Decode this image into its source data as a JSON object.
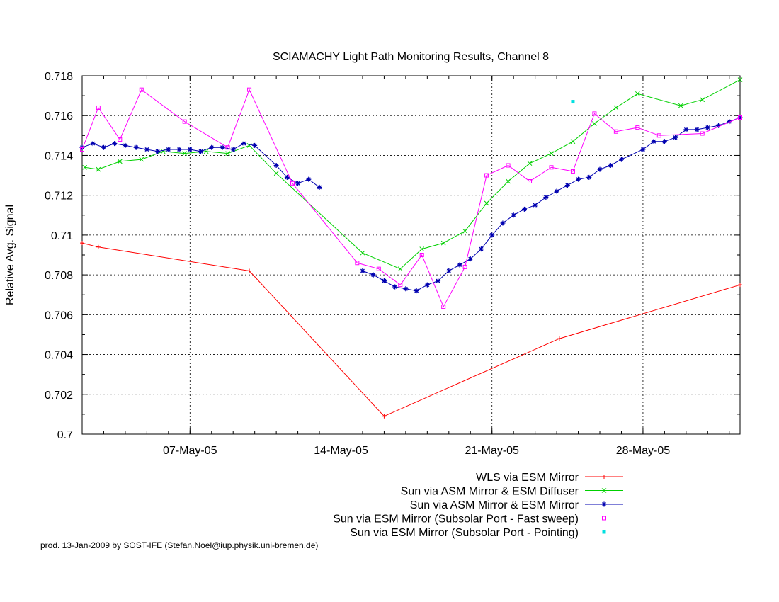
{
  "chart_data": {
    "type": "line",
    "title": "SCIAMACHY Light Path Monitoring Results, Channel 8",
    "xlabel": "",
    "ylabel": "Relative Avg. Signal",
    "x_unit": "date (May 2005)",
    "xlim": [
      "2005-05-02T00:00",
      "2005-06-01T12:00"
    ],
    "ylim": [
      0.7,
      0.718
    ],
    "yticks": [
      0.7,
      0.702,
      0.704,
      0.706,
      0.708,
      0.71,
      0.712,
      0.714,
      0.716,
      0.718
    ],
    "ytick_labels": [
      "0.7",
      "0.702",
      "0.704",
      "0.706",
      "0.708",
      "0.71",
      "0.712",
      "0.714",
      "0.716",
      "0.718"
    ],
    "xticks": [
      "2005-05-07",
      "2005-05-14",
      "2005-05-21",
      "2005-05-28"
    ],
    "xtick_labels": [
      "07-May-05",
      "14-May-05",
      "21-May-05",
      "28-May-05"
    ],
    "grid": true,
    "legend_position": "bottom-right",
    "series": [
      {
        "name": "WLS via ESM Mirror",
        "color": "#ff0000",
        "marker": "plus",
        "connected": true,
        "points": [
          [
            "2005-05-02T00:00",
            0.7096
          ],
          [
            "2005-05-02T18:00",
            0.7094
          ],
          [
            "2005-05-09T18:00",
            0.7082
          ],
          [
            "2005-05-16T00:00",
            0.7009
          ],
          [
            "2005-05-24T03:00",
            0.7048
          ],
          [
            "2005-06-01T12:00",
            0.7075
          ]
        ]
      },
      {
        "name": "Sun via ASM Mirror & ESM Diffuser",
        "color": "#00d000",
        "marker": "cross",
        "connected": true,
        "points": [
          [
            "2005-05-02T03:00",
            0.7134
          ],
          [
            "2005-05-02T18:00",
            0.7133
          ],
          [
            "2005-05-03T18:00",
            0.7137
          ],
          [
            "2005-05-04T18:00",
            0.7138
          ],
          [
            "2005-05-05T18:00",
            0.7142
          ],
          [
            "2005-05-06T18:00",
            0.7141
          ],
          [
            "2005-05-07T18:00",
            0.7142
          ],
          [
            "2005-05-08T18:00",
            0.7141
          ],
          [
            "2005-05-09T18:00",
            0.7145
          ],
          [
            "2005-05-11T00:00",
            0.7131
          ],
          [
            "2005-05-15T00:00",
            0.7091
          ],
          [
            "2005-05-16T18:00",
            0.7083
          ],
          [
            "2005-05-17T18:00",
            0.7093
          ],
          [
            "2005-05-18T18:00",
            0.7096
          ],
          [
            "2005-05-19T18:00",
            0.7102
          ],
          [
            "2005-05-20T18:00",
            0.7116
          ],
          [
            "2005-05-21T18:00",
            0.7127
          ],
          [
            "2005-05-22T18:00",
            0.7136
          ],
          [
            "2005-05-23T18:00",
            0.7141
          ],
          [
            "2005-05-24T18:00",
            0.7147
          ],
          [
            "2005-05-25T18:00",
            0.7156
          ],
          [
            "2005-05-26T18:00",
            0.7164
          ],
          [
            "2005-05-27T18:00",
            0.7171
          ],
          [
            "2005-05-29T18:00",
            0.7165
          ],
          [
            "2005-05-30T18:00",
            0.7168
          ],
          [
            "2005-06-01T12:00",
            0.7178
          ]
        ]
      },
      {
        "name": "Sun via ASM Mirror & ESM Mirror",
        "color": "#0000b0",
        "marker": "star",
        "connected": true,
        "dense": true,
        "points": [
          [
            "2005-05-02T00:00",
            0.7144
          ],
          [
            "2005-05-02T12:00",
            0.7146
          ],
          [
            "2005-05-03T00:00",
            0.7144
          ],
          [
            "2005-05-03T12:00",
            0.7146
          ],
          [
            "2005-05-04T00:00",
            0.7145
          ],
          [
            "2005-05-04T12:00",
            0.7144
          ],
          [
            "2005-05-05T00:00",
            0.7143
          ],
          [
            "2005-05-05T12:00",
            0.7142
          ],
          [
            "2005-05-06T00:00",
            0.7143
          ],
          [
            "2005-05-06T12:00",
            0.7143
          ],
          [
            "2005-05-07T00:00",
            0.7143
          ],
          [
            "2005-05-07T12:00",
            0.7142
          ],
          [
            "2005-05-08T00:00",
            0.7144
          ],
          [
            "2005-05-08T12:00",
            0.7144
          ],
          [
            "2005-05-09T00:00",
            0.7143
          ],
          [
            "2005-05-09T12:00",
            0.7146
          ],
          [
            "2005-05-10T00:00",
            0.7145
          ],
          [
            "2005-05-11T00:00",
            0.7135
          ],
          [
            "2005-05-11T12:00",
            0.7129
          ],
          [
            "2005-05-12T00:00",
            0.7126
          ],
          [
            "2005-05-12T12:00",
            0.7128
          ],
          [
            "2005-05-13T00:00",
            0.7124
          ],
          [
            "2005-05-15T00:00",
            0.7082
          ],
          [
            "2005-05-15T12:00",
            0.708
          ],
          [
            "2005-05-16T00:00",
            0.7077
          ],
          [
            "2005-05-16T12:00",
            0.7074
          ],
          [
            "2005-05-17T00:00",
            0.7073
          ],
          [
            "2005-05-17T12:00",
            0.7072
          ],
          [
            "2005-05-18T00:00",
            0.7075
          ],
          [
            "2005-05-18T12:00",
            0.7077
          ],
          [
            "2005-05-19T00:00",
            0.7082
          ],
          [
            "2005-05-19T12:00",
            0.7085
          ],
          [
            "2005-05-20T00:00",
            0.7088
          ],
          [
            "2005-05-20T12:00",
            0.7093
          ],
          [
            "2005-05-21T00:00",
            0.71
          ],
          [
            "2005-05-21T12:00",
            0.7106
          ],
          [
            "2005-05-22T00:00",
            0.711
          ],
          [
            "2005-05-22T12:00",
            0.7113
          ],
          [
            "2005-05-23T00:00",
            0.7115
          ],
          [
            "2005-05-23T12:00",
            0.7119
          ],
          [
            "2005-05-24T00:00",
            0.7122
          ],
          [
            "2005-05-24T12:00",
            0.7125
          ],
          [
            "2005-05-25T00:00",
            0.7128
          ],
          [
            "2005-05-25T12:00",
            0.7129
          ],
          [
            "2005-05-26T00:00",
            0.7133
          ],
          [
            "2005-05-26T12:00",
            0.7135
          ],
          [
            "2005-05-27T00:00",
            0.7138
          ],
          [
            "2005-05-28T00:00",
            0.7143
          ],
          [
            "2005-05-28T12:00",
            0.7147
          ],
          [
            "2005-05-29T00:00",
            0.7147
          ],
          [
            "2005-05-29T12:00",
            0.7149
          ],
          [
            "2005-05-30T00:00",
            0.7153
          ],
          [
            "2005-05-30T12:00",
            0.7153
          ],
          [
            "2005-05-31T00:00",
            0.7154
          ],
          [
            "2005-05-31T12:00",
            0.7155
          ],
          [
            "2005-06-01T00:00",
            0.7157
          ],
          [
            "2005-06-01T12:00",
            0.7159
          ]
        ]
      },
      {
        "name": "Sun via ESM Mirror (Subsolar Port - Fast sweep)",
        "color": "#ff00ff",
        "marker": "open-square",
        "connected": true,
        "points": [
          [
            "2005-05-02T00:00",
            0.7143
          ],
          [
            "2005-05-02T18:00",
            0.7164
          ],
          [
            "2005-05-03T18:00",
            0.7148
          ],
          [
            "2005-05-04T18:00",
            0.7173
          ],
          [
            "2005-05-06T18:00",
            0.7157
          ],
          [
            "2005-05-08T18:00",
            0.7144
          ],
          [
            "2005-05-09T18:00",
            0.7173
          ],
          [
            "2005-05-11T18:00",
            0.7126
          ],
          [
            "2005-05-14T18:00",
            0.7086
          ],
          [
            "2005-05-15T18:00",
            0.7083
          ],
          [
            "2005-05-16T18:00",
            0.7075
          ],
          [
            "2005-05-17T18:00",
            0.709
          ],
          [
            "2005-05-18T18:00",
            0.7064
          ],
          [
            "2005-05-19T18:00",
            0.7084
          ],
          [
            "2005-05-20T18:00",
            0.713
          ],
          [
            "2005-05-21T18:00",
            0.7135
          ],
          [
            "2005-05-22T18:00",
            0.7127
          ],
          [
            "2005-05-23T18:00",
            0.7134
          ],
          [
            "2005-05-24T18:00",
            0.7132
          ],
          [
            "2005-05-25T18:00",
            0.7161
          ],
          [
            "2005-05-26T18:00",
            0.7152
          ],
          [
            "2005-05-27T18:00",
            0.7154
          ],
          [
            "2005-05-28T18:00",
            0.715
          ],
          [
            "2005-05-30T18:00",
            0.7151
          ],
          [
            "2005-06-01T12:00",
            0.7159
          ]
        ]
      },
      {
        "name": "Sun via ESM Mirror (Subsolar Port - Pointing)",
        "color": "#00e0e0",
        "marker": "filled-square",
        "connected": false,
        "points": [
          [
            "2005-05-24T18:00",
            0.7167
          ]
        ]
      }
    ]
  },
  "footer": "prod. 13-Jan-2009 by SOST-IFE (Stefan.Noel@iup.physik.uni-bremen.de)"
}
